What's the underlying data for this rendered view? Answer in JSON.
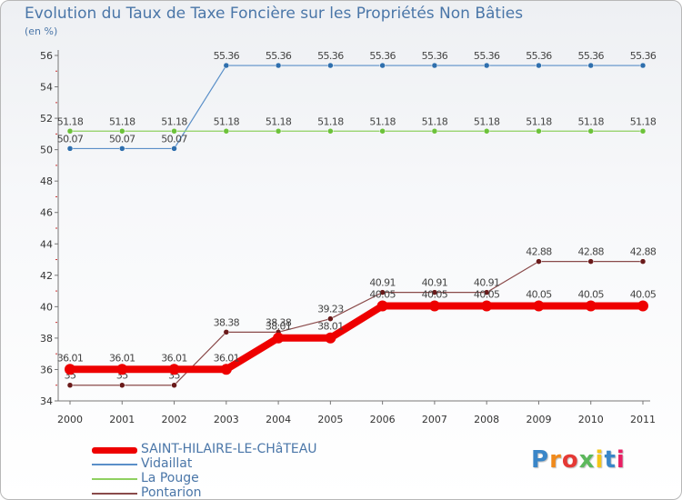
{
  "header": {
    "title": "Evolution du Taux de Taxe Foncière sur les Propriétés Non Bâties",
    "unit": "(en %)"
  },
  "chart_data": {
    "type": "line",
    "title": "Evolution du Taux de Taxe Foncière sur les Propriétés Non Bâties",
    "ylabel": "(en %)",
    "xlabel": "",
    "ylim": [
      34,
      56
    ],
    "yticks": [
      34,
      36,
      38,
      40,
      42,
      44,
      46,
      48,
      50,
      52,
      54,
      56
    ],
    "categories": [
      "2000",
      "2001",
      "2002",
      "2003",
      "2004",
      "2005",
      "2006",
      "2007",
      "2008",
      "2009",
      "2010",
      "2011"
    ],
    "grid": false,
    "legend_position": "bottom-left",
    "series": [
      {
        "name": "Vidaillat",
        "color": "#5a8fc8",
        "marker_color": "#2f6fad",
        "values": [
          50.07,
          50.07,
          50.07,
          55.36,
          55.36,
          55.36,
          55.36,
          55.36,
          55.36,
          55.36,
          55.36,
          55.36
        ],
        "labels": [
          "50.07",
          "50.07",
          "50.07",
          "55.36",
          "55.36",
          "55.36",
          "55.36",
          "55.36",
          "55.36",
          "55.36",
          "55.36",
          "55.36"
        ]
      },
      {
        "name": "La Pouge",
        "color": "#8fd060",
        "marker_color": "#6cc23a",
        "values": [
          51.18,
          51.18,
          51.18,
          51.18,
          51.18,
          51.18,
          51.18,
          51.18,
          51.18,
          51.18,
          51.18,
          51.18
        ],
        "labels": [
          "51.18",
          "51.18",
          "51.18",
          "51.18",
          "51.18",
          "51.18",
          "51.18",
          "51.18",
          "51.18",
          "51.18",
          "51.18",
          "51.18"
        ]
      },
      {
        "name": "Pontarion",
        "color": "#8a4a4a",
        "marker_color": "#6a1a1a",
        "values": [
          35,
          35,
          35,
          38.38,
          38.38,
          39.23,
          40.91,
          40.91,
          40.91,
          42.88,
          42.88,
          42.88
        ],
        "labels": [
          "35",
          "35",
          "35",
          "38.38",
          "38.38",
          "39.23",
          "40.91",
          "40.91",
          "40.91",
          "42.88",
          "42.88",
          "42.88"
        ]
      },
      {
        "name": "SAINT-HILAIRE-LE-CHâTEAU",
        "color": "#ee0000",
        "marker_color": "#ee0000",
        "values": [
          36.01,
          36.01,
          36.01,
          36.01,
          38.01,
          38.01,
          40.05,
          40.05,
          40.05,
          40.05,
          40.05,
          40.05
        ],
        "labels": [
          "36.01",
          "36.01",
          "36.01",
          "36.01",
          "38.01",
          "38.01",
          "40.05",
          "40.05",
          "40.05",
          "40.05",
          "40.05",
          "40.05"
        ]
      }
    ]
  },
  "legend": {
    "items": [
      {
        "label": "SAINT-HILAIRE-LE-CHâTEAU",
        "color": "#ee0000",
        "thick": true
      },
      {
        "label": "Vidaillat",
        "color": "#5a8fc8",
        "thick": false
      },
      {
        "label": "La Pouge",
        "color": "#8fd060",
        "thick": false
      },
      {
        "label": "Pontarion",
        "color": "#8a4a4a",
        "thick": false
      }
    ]
  },
  "logo": {
    "text": "Proxiti",
    "letter_colors": [
      "#3a86c8",
      "#f08a1c",
      "#e53935",
      "#5cb85c",
      "#f5c518",
      "#3a86c8",
      "#e91e63"
    ]
  }
}
